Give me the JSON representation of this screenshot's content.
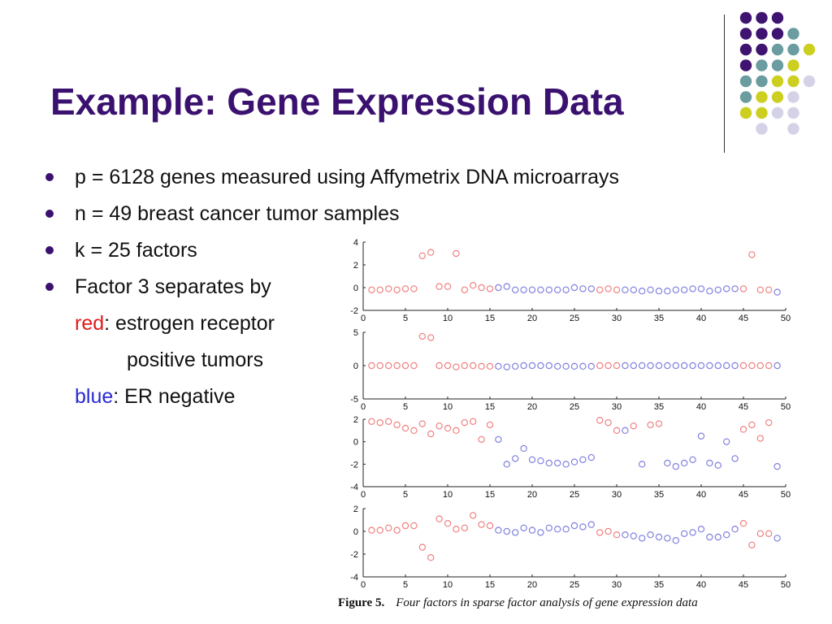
{
  "slide": {
    "title": "Example: Gene Expression Data",
    "bullets": [
      "p = 6128 genes measured using Affymetrix DNA microarrays",
      "n = 49 breast cancer tumor samples",
      "k = 25 factors",
      "Factor 3 separates by"
    ],
    "sub_lines": {
      "red_word": "red",
      "red_rest": ": estrogen receptor",
      "positive": "positive tumors",
      "blue_word": "blue",
      "blue_rest": ": ER negative"
    },
    "caption": {
      "figure": "Figure 5.",
      "text": "Four factors in sparse factor analysis of gene expression data"
    },
    "colors": {
      "title": "#3b1170",
      "red": "#e01b1b",
      "blue": "#2a2ad0",
      "marker_red": "#f08080",
      "marker_blue": "#8080e0",
      "deco_purple": "#3f1471",
      "deco_teal": "#6b9ca0",
      "deco_lime": "#cdcf20",
      "deco_lavender": "#d4d2e6"
    }
  },
  "chart_data": [
    {
      "type": "scatter",
      "title": "",
      "xlim": [
        0,
        50
      ],
      "ylim": [
        -2,
        4
      ],
      "xticks": [
        0,
        5,
        10,
        15,
        20,
        25,
        30,
        35,
        40,
        45,
        50
      ],
      "yticks": [
        -2,
        0,
        2,
        4
      ],
      "x": [
        1,
        2,
        3,
        4,
        5,
        6,
        7,
        8,
        9,
        10,
        11,
        12,
        13,
        14,
        15,
        16,
        17,
        18,
        19,
        20,
        21,
        22,
        23,
        24,
        25,
        26,
        27,
        28,
        29,
        30,
        31,
        32,
        33,
        34,
        35,
        36,
        37,
        38,
        39,
        40,
        41,
        42,
        43,
        44,
        45,
        46,
        47,
        48,
        49
      ],
      "y": [
        -0.2,
        -0.2,
        -0.1,
        -0.2,
        -0.1,
        -0.1,
        2.8,
        3.1,
        0.1,
        0.1,
        3.0,
        -0.2,
        0.2,
        0,
        -0.1,
        0,
        0.1,
        -0.2,
        -0.2,
        -0.2,
        -0.2,
        -0.2,
        -0.2,
        -0.2,
        0,
        -0.1,
        -0.1,
        -0.2,
        -0.1,
        -0.2,
        -0.2,
        -0.2,
        -0.3,
        -0.2,
        -0.3,
        -0.3,
        -0.2,
        -0.2,
        -0.1,
        -0.1,
        -0.3,
        -0.2,
        -0.1,
        -0.1,
        -0.1,
        2.9,
        -0.2,
        -0.2,
        -0.4
      ],
      "colors": [
        "red",
        "red",
        "red",
        "red",
        "red",
        "red",
        "red",
        "red",
        "red",
        "red",
        "red",
        "red",
        "red",
        "red",
        "red",
        "blue",
        "blue",
        "blue",
        "blue",
        "blue",
        "blue",
        "blue",
        "blue",
        "blue",
        "blue",
        "blue",
        "blue",
        "red",
        "red",
        "red",
        "blue",
        "blue",
        "blue",
        "blue",
        "blue",
        "blue",
        "blue",
        "blue",
        "blue",
        "blue",
        "blue",
        "blue",
        "blue",
        "blue",
        "red",
        "red",
        "red",
        "red",
        "blue"
      ]
    },
    {
      "type": "scatter",
      "title": "",
      "xlim": [
        0,
        50
      ],
      "ylim": [
        -5,
        5
      ],
      "xticks": [
        0,
        5,
        10,
        15,
        20,
        25,
        30,
        35,
        40,
        45,
        50
      ],
      "yticks": [
        -5,
        0,
        5
      ],
      "x": [
        1,
        2,
        3,
        4,
        5,
        6,
        7,
        8,
        9,
        10,
        11,
        12,
        13,
        14,
        15,
        16,
        17,
        18,
        19,
        20,
        21,
        22,
        23,
        24,
        25,
        26,
        27,
        28,
        29,
        30,
        31,
        32,
        33,
        34,
        35,
        36,
        37,
        38,
        39,
        40,
        41,
        42,
        43,
        44,
        45,
        46,
        47,
        48,
        49
      ],
      "y": [
        0,
        0,
        0,
        0,
        0,
        0,
        4.4,
        4.2,
        0,
        0,
        -0.2,
        0,
        0,
        -0.1,
        -0.1,
        -0.1,
        -0.2,
        -0.1,
        0,
        0,
        0,
        0,
        -0.1,
        -0.1,
        -0.1,
        -0.1,
        -0.1,
        0,
        0,
        0,
        0,
        0,
        0,
        0,
        0,
        0,
        0,
        0,
        0,
        0,
        0,
        0,
        0,
        0,
        0,
        0,
        0,
        0,
        0
      ],
      "colors": [
        "red",
        "red",
        "red",
        "red",
        "red",
        "red",
        "red",
        "red",
        "red",
        "red",
        "red",
        "red",
        "red",
        "red",
        "red",
        "blue",
        "blue",
        "blue",
        "blue",
        "blue",
        "blue",
        "blue",
        "blue",
        "blue",
        "blue",
        "blue",
        "blue",
        "red",
        "red",
        "red",
        "blue",
        "blue",
        "blue",
        "blue",
        "blue",
        "blue",
        "blue",
        "blue",
        "blue",
        "blue",
        "blue",
        "blue",
        "blue",
        "blue",
        "red",
        "red",
        "red",
        "red",
        "blue"
      ]
    },
    {
      "type": "scatter",
      "title": "",
      "xlim": [
        0,
        50
      ],
      "ylim": [
        -4,
        2
      ],
      "xticks": [
        0,
        5,
        10,
        15,
        20,
        25,
        30,
        35,
        40,
        45,
        50
      ],
      "yticks": [
        -4,
        -2,
        0,
        2
      ],
      "x": [
        1,
        2,
        3,
        4,
        5,
        6,
        7,
        8,
        9,
        10,
        11,
        12,
        13,
        14,
        15,
        16,
        17,
        18,
        19,
        20,
        21,
        22,
        23,
        24,
        25,
        26,
        27,
        28,
        29,
        30,
        31,
        32,
        33,
        34,
        35,
        36,
        37,
        38,
        39,
        40,
        41,
        42,
        43,
        44,
        45,
        46,
        47,
        48,
        49
      ],
      "y": [
        1.8,
        1.7,
        1.8,
        1.5,
        1.2,
        1.0,
        1.6,
        0.7,
        1.4,
        1.2,
        1.0,
        1.7,
        1.8,
        0.2,
        1.5,
        0.2,
        -2.0,
        -1.5,
        -0.6,
        -1.6,
        -1.7,
        -1.9,
        -1.9,
        -2.0,
        -1.8,
        -1.6,
        -1.4,
        1.9,
        1.7,
        1.0,
        1.0,
        1.4,
        -2.0,
        1.5,
        1.6,
        -1.9,
        -2.2,
        -1.9,
        -1.6,
        0.5,
        -1.9,
        -2.1,
        0.0,
        -1.5,
        1.1,
        1.5,
        0.3,
        1.7,
        -2.2
      ],
      "colors": [
        "red",
        "red",
        "red",
        "red",
        "red",
        "red",
        "red",
        "red",
        "red",
        "red",
        "red",
        "red",
        "red",
        "red",
        "red",
        "blue",
        "blue",
        "blue",
        "blue",
        "blue",
        "blue",
        "blue",
        "blue",
        "blue",
        "blue",
        "blue",
        "blue",
        "red",
        "red",
        "red",
        "blue",
        "red",
        "blue",
        "red",
        "red",
        "blue",
        "blue",
        "blue",
        "blue",
        "blue",
        "blue",
        "blue",
        "blue",
        "blue",
        "red",
        "red",
        "red",
        "red",
        "blue"
      ]
    },
    {
      "type": "scatter",
      "title": "",
      "xlim": [
        0,
        50
      ],
      "ylim": [
        -4,
        2
      ],
      "xticks": [
        0,
        5,
        10,
        15,
        20,
        25,
        30,
        35,
        40,
        45,
        50
      ],
      "yticks": [
        -4,
        -2,
        0,
        2
      ],
      "x": [
        1,
        2,
        3,
        4,
        5,
        6,
        7,
        8,
        9,
        10,
        11,
        12,
        13,
        14,
        15,
        16,
        17,
        18,
        19,
        20,
        21,
        22,
        23,
        24,
        25,
        26,
        27,
        28,
        29,
        30,
        31,
        32,
        33,
        34,
        35,
        36,
        37,
        38,
        39,
        40,
        41,
        42,
        43,
        44,
        45,
        46,
        47,
        48,
        49
      ],
      "y": [
        0.1,
        0.1,
        0.3,
        0.1,
        0.5,
        0.5,
        -1.4,
        -2.3,
        1.1,
        0.7,
        0.2,
        0.3,
        1.4,
        0.6,
        0.5,
        0.1,
        0.0,
        -0.1,
        0.3,
        0.1,
        -0.1,
        0.3,
        0.2,
        0.2,
        0.5,
        0.4,
        0.6,
        -0.1,
        0.0,
        -0.3,
        -0.3,
        -0.4,
        -0.6,
        -0.3,
        -0.5,
        -0.6,
        -0.8,
        -0.2,
        -0.1,
        0.2,
        -0.5,
        -0.5,
        -0.3,
        0.2,
        0.7,
        -1.2,
        -0.2,
        -0.2,
        -0.6
      ],
      "colors": [
        "red",
        "red",
        "red",
        "red",
        "red",
        "red",
        "red",
        "red",
        "red",
        "red",
        "red",
        "red",
        "red",
        "red",
        "red",
        "blue",
        "blue",
        "blue",
        "blue",
        "blue",
        "blue",
        "blue",
        "blue",
        "blue",
        "blue",
        "blue",
        "blue",
        "red",
        "red",
        "red",
        "blue",
        "blue",
        "blue",
        "blue",
        "blue",
        "blue",
        "blue",
        "blue",
        "blue",
        "blue",
        "blue",
        "blue",
        "blue",
        "blue",
        "red",
        "red",
        "red",
        "red",
        "blue"
      ]
    }
  ]
}
